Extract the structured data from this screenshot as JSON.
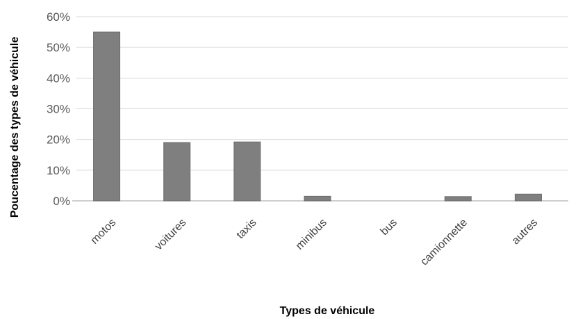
{
  "chart_data": {
    "type": "bar",
    "categories": [
      "motos",
      "voitures",
      "taxis",
      "minibus",
      "bus",
      "camionnette",
      "autres"
    ],
    "values": [
      55,
      19,
      19.2,
      1.5,
      0,
      1.4,
      2.2
    ],
    "ylim": [
      0,
      60
    ],
    "yticks": [
      "0%",
      "10%",
      "20%",
      "30%",
      "40%",
      "50%",
      "60%"
    ],
    "ytick_values": [
      0,
      10,
      20,
      30,
      40,
      50,
      60
    ],
    "xlabel": "Types de véhicule",
    "ylabel": "Poucentage des types de véhicule",
    "grid": true,
    "legend": "none",
    "colors": {
      "bar": "#7f7f7f",
      "bar_edge": "#6b6b6b",
      "grid": "#d9d9d9",
      "axis": "#bfbfbf"
    }
  }
}
